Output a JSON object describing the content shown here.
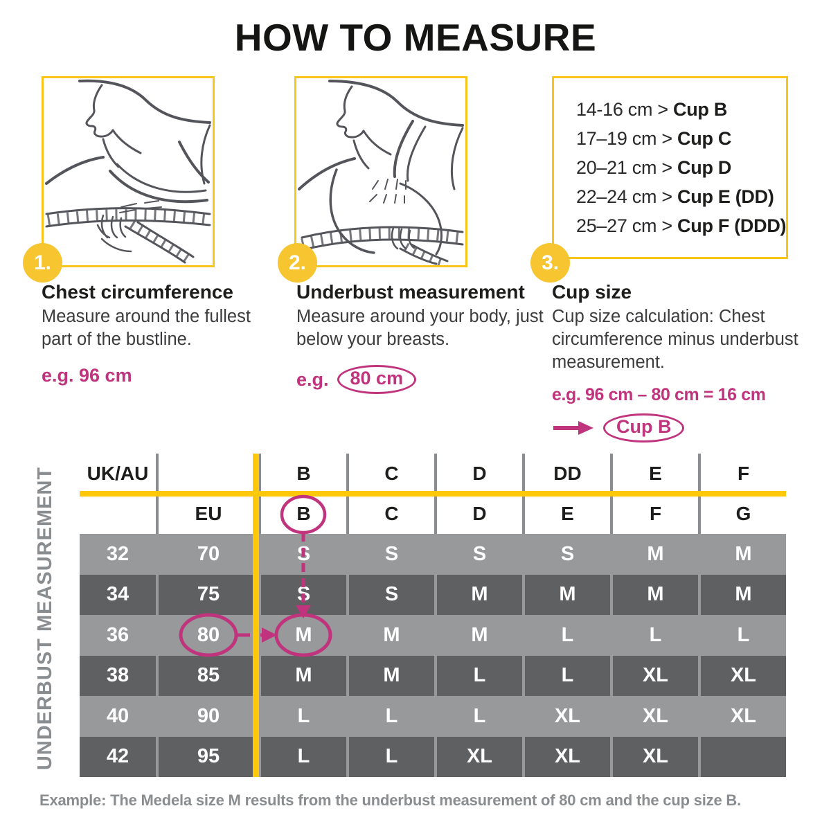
{
  "title": "HOW TO MEASURE",
  "colors": {
    "yellow": "#F6C52F",
    "yellow_line": "#FFC90A",
    "magenta": "#C0347D",
    "row_light": "#97999B",
    "row_dark": "#5F6062",
    "gray_text": "#8A8D8F"
  },
  "steps": [
    {
      "number": "1.",
      "heading": "Chest circumference",
      "body": "Measure around the fullest part of the bustline.",
      "example": "e.g. 96 cm"
    },
    {
      "number": "2.",
      "heading": "Underbust measurement",
      "body": "Measure around your body, just below your breasts.",
      "example_prefix": "e.g.",
      "example_value": "80 cm"
    },
    {
      "number": "3.",
      "heading": "Cup size",
      "body": "Cup size calculation: Chest circumference minus underbust measurement.",
      "example": "e.g. 96 cm – 80 cm = 16 cm",
      "result": "Cup B"
    }
  ],
  "cup_chart": {
    "rows": [
      {
        "range": "14-16 cm >",
        "cup": "Cup B"
      },
      {
        "range": "17–19 cm >",
        "cup": "Cup C"
      },
      {
        "range": "20–21 cm >",
        "cup": "Cup D"
      },
      {
        "range": "22–24 cm >",
        "cup": "Cup E (DD)"
      },
      {
        "range": "25–27 cm >",
        "cup": "Cup F (DDD)"
      }
    ]
  },
  "size_table": {
    "side_label": "UNDERBUST MEASUREMENT",
    "header_row1": [
      "UK/AU",
      "",
      "B",
      "C",
      "D",
      "DD",
      "E",
      "F"
    ],
    "header_row2": [
      "",
      "EU",
      "B",
      "C",
      "D",
      "E",
      "F",
      "G"
    ],
    "rows": [
      {
        "ukau": "32",
        "eu": "70",
        "sizes": [
          "S",
          "S",
          "S",
          "S",
          "M",
          "M"
        ]
      },
      {
        "ukau": "34",
        "eu": "75",
        "sizes": [
          "S",
          "S",
          "M",
          "M",
          "M",
          "M"
        ]
      },
      {
        "ukau": "36",
        "eu": "80",
        "sizes": [
          "M",
          "M",
          "M",
          "L",
          "L",
          "L"
        ]
      },
      {
        "ukau": "38",
        "eu": "85",
        "sizes": [
          "M",
          "M",
          "L",
          "L",
          "XL",
          "XL"
        ]
      },
      {
        "ukau": "40",
        "eu": "90",
        "sizes": [
          "L",
          "L",
          "L",
          "XL",
          "XL",
          "XL"
        ]
      },
      {
        "ukau": "42",
        "eu": "95",
        "sizes": [
          "L",
          "L",
          "XL",
          "XL",
          "XL",
          ""
        ]
      }
    ],
    "highlight": {
      "circled_header_cup": "B",
      "circled_row_eu": "80",
      "circled_result_size": "M"
    }
  },
  "footer_example": "Example: The Medela size M results from the underbust measurement of 80 cm and the cup size B."
}
